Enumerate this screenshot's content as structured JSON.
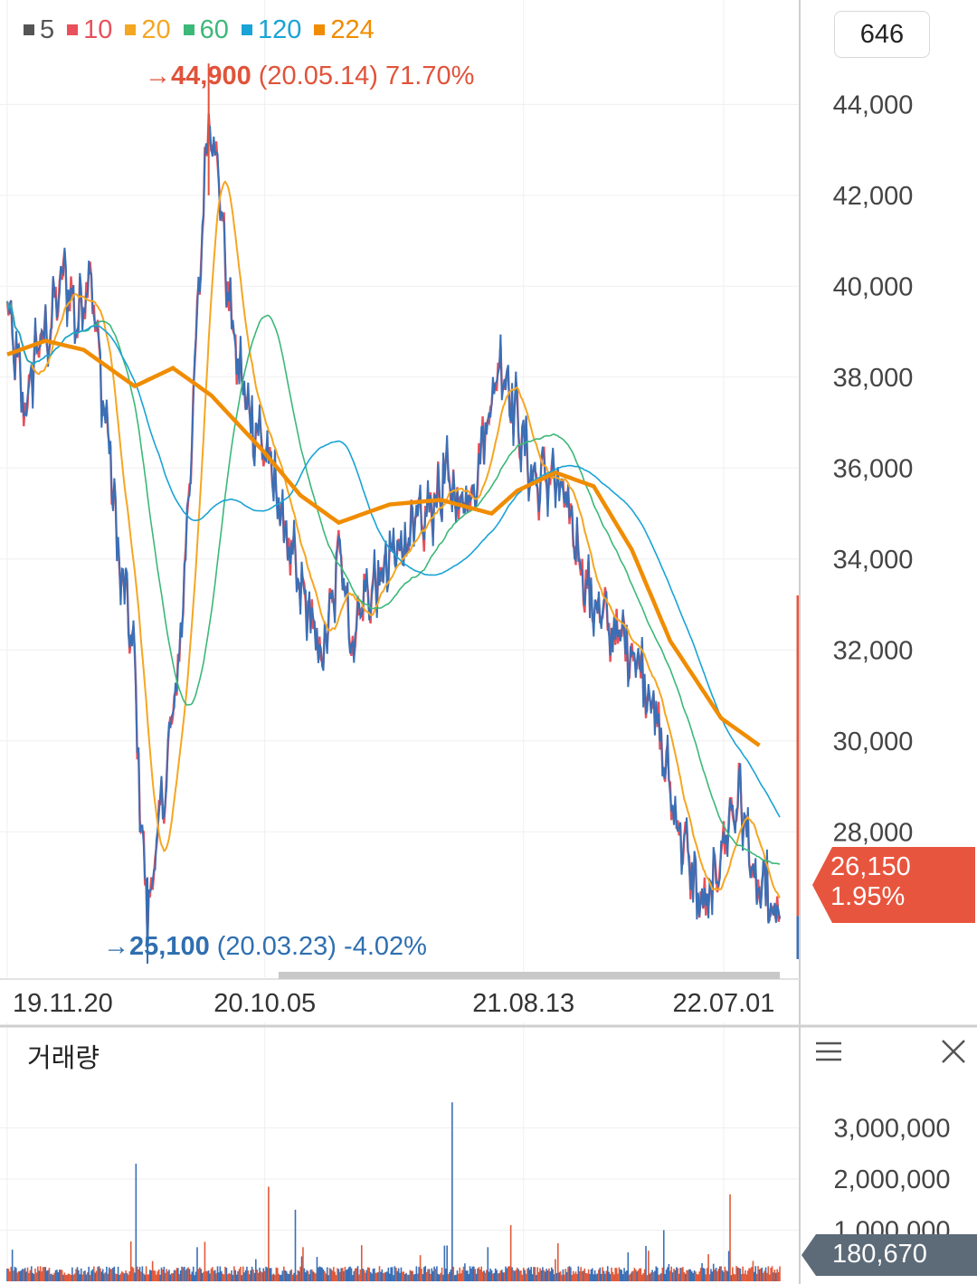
{
  "legend": [
    {
      "label": "5",
      "color": "#555555"
    },
    {
      "label": "10",
      "color": "#e8505b"
    },
    {
      "label": "20",
      "color": "#f5a623"
    },
    {
      "label": "60",
      "color": "#3cb878"
    },
    {
      "label": "120",
      "color": "#1aa3d6"
    },
    {
      "label": "224",
      "color": "#f08c00"
    }
  ],
  "count_label": "646",
  "high_annotation": {
    "price": "44,900",
    "date": "(20.05.14)",
    "pct": "71.70%",
    "color": "#e0533a"
  },
  "low_annotation": {
    "price": "25,100",
    "date": "(20.03.23)",
    "pct": "-4.02%",
    "color": "#2f6fb0"
  },
  "current_price": {
    "price": "26,150",
    "pct": "1.95%",
    "color": "#e8553e"
  },
  "volume_panel": {
    "title": "거래량",
    "current_volume": "180,670"
  },
  "chart_data": [
    {
      "type": "line",
      "title": "",
      "ylim": [
        25000,
        45300
      ],
      "y_ticks": [
        28000,
        30000,
        32000,
        34000,
        36000,
        38000,
        40000,
        42000,
        44000
      ],
      "y_tick_labels": [
        "28,000",
        "30,000",
        "32,000",
        "34,000",
        "36,000",
        "38,000",
        "40,000",
        "42,000",
        "44,000"
      ],
      "x_tick_labels": [
        "19.11.20",
        "20.10.05",
        "21.08.13",
        "22.07.01"
      ],
      "x_tick_index": [
        0,
        202,
        405,
        562
      ],
      "n_points": 607,
      "grid": true,
      "price_anchors": [
        [
          0,
          39500
        ],
        [
          8,
          38200
        ],
        [
          15,
          37200
        ],
        [
          22,
          38600
        ],
        [
          32,
          39000
        ],
        [
          45,
          40300
        ],
        [
          55,
          39200
        ],
        [
          65,
          40500
        ],
        [
          72,
          38300
        ],
        [
          80,
          36500
        ],
        [
          88,
          33800
        ],
        [
          95,
          32800
        ],
        [
          100,
          31600
        ],
        [
          105,
          28200
        ],
        [
          110,
          26200
        ],
        [
          118,
          27800
        ],
        [
          126,
          29600
        ],
        [
          135,
          31800
        ],
        [
          145,
          36800
        ],
        [
          152,
          40800
        ],
        [
          158,
          43900
        ],
        [
          165,
          42700
        ],
        [
          172,
          40200
        ],
        [
          180,
          38400
        ],
        [
          190,
          37200
        ],
        [
          200,
          36600
        ],
        [
          210,
          35600
        ],
        [
          220,
          34400
        ],
        [
          228,
          33400
        ],
        [
          238,
          32800
        ],
        [
          245,
          31700
        ],
        [
          255,
          32900
        ],
        [
          262,
          34500
        ],
        [
          270,
          32000
        ],
        [
          278,
          33100
        ],
        [
          290,
          33400
        ],
        [
          300,
          33900
        ],
        [
          308,
          34300
        ],
        [
          316,
          34600
        ],
        [
          325,
          34700
        ],
        [
          335,
          35300
        ],
        [
          345,
          35800
        ],
        [
          355,
          35200
        ],
        [
          365,
          35600
        ],
        [
          372,
          36400
        ],
        [
          380,
          37600
        ],
        [
          388,
          38400
        ],
        [
          398,
          37300
        ],
        [
          408,
          36200
        ],
        [
          415,
          35600
        ],
        [
          425,
          35900
        ],
        [
          435,
          35400
        ],
        [
          445,
          34600
        ],
        [
          455,
          33300
        ],
        [
          465,
          32800
        ],
        [
          475,
          32400
        ],
        [
          485,
          32200
        ],
        [
          495,
          31800
        ],
        [
          505,
          31000
        ],
        [
          515,
          29600
        ],
        [
          525,
          28300
        ],
        [
          535,
          27300
        ],
        [
          545,
          26300
        ],
        [
          552,
          26500
        ],
        [
          560,
          27600
        ],
        [
          568,
          28400
        ],
        [
          575,
          28800
        ],
        [
          582,
          27600
        ],
        [
          588,
          26500
        ],
        [
          595,
          26800
        ],
        [
          600,
          26000
        ],
        [
          606,
          26150
        ]
      ],
      "volume_ylim": [
        0,
        4000000
      ],
      "volume_ticks": [
        1000000,
        2000000,
        3000000
      ],
      "volume_tick_labels": [
        "1,000,000",
        "2,000,000",
        "3,000,000"
      ],
      "volume_spikes": [
        [
          101,
          2300000
        ],
        [
          205,
          1850000
        ],
        [
          226,
          1400000
        ],
        [
          345,
          700000
        ],
        [
          349,
          3500000
        ],
        [
          395,
          1100000
        ],
        [
          515,
          1000000
        ],
        [
          567,
          1700000
        ]
      ],
      "ma224_anchors": [
        [
          0,
          38500
        ],
        [
          30,
          38800
        ],
        [
          60,
          38600
        ],
        [
          100,
          37800
        ],
        [
          130,
          38200
        ],
        [
          160,
          37600
        ],
        [
          200,
          36400
        ],
        [
          230,
          35400
        ],
        [
          260,
          34800
        ],
        [
          300,
          35200
        ],
        [
          340,
          35300
        ],
        [
          380,
          35000
        ],
        [
          400,
          35500
        ],
        [
          430,
          35900
        ],
        [
          460,
          35600
        ],
        [
          490,
          34200
        ],
        [
          520,
          32200
        ],
        [
          560,
          30500
        ],
        [
          590,
          29900
        ]
      ]
    }
  ]
}
